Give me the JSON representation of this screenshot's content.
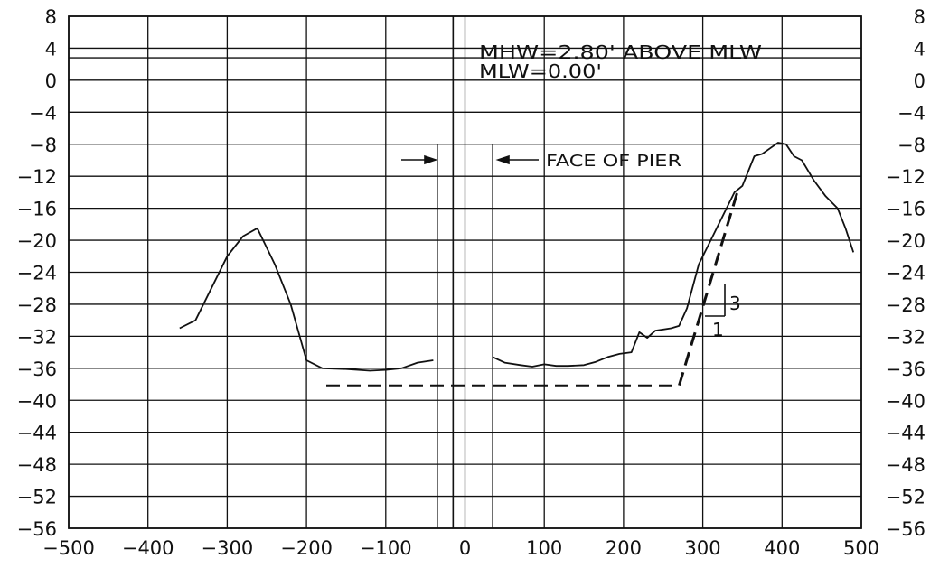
{
  "chart_data": {
    "type": "line",
    "xlim": [
      -500,
      500
    ],
    "ylim": [
      -56,
      8
    ],
    "x_ticks": [
      "-500",
      "-400",
      "-300",
      "-200",
      "-100",
      "0",
      "100",
      "200",
      "300",
      "400",
      "500"
    ],
    "y_ticks": [
      "8",
      "4",
      "0",
      "-4",
      "-8",
      "-12",
      "-16",
      "-20",
      "-24",
      "-28",
      "-32",
      "-36",
      "-40",
      "-44",
      "-48",
      "-52",
      "-56"
    ],
    "grid": true,
    "series": [
      {
        "style": "solid",
        "points": [
          [
            -360,
            -31
          ],
          [
            -340,
            -30
          ],
          [
            -320,
            -26
          ],
          [
            -300,
            -22
          ],
          [
            -280,
            -19.5
          ],
          [
            -262,
            -18.5
          ],
          [
            -240,
            -23
          ],
          [
            -220,
            -28
          ],
          [
            -200,
            -35
          ],
          [
            -180,
            -36
          ],
          [
            -150,
            -36.1
          ],
          [
            -120,
            -36.3
          ],
          [
            -100,
            -36.2
          ],
          [
            -80,
            -36
          ],
          [
            -60,
            -35.3
          ],
          [
            -40,
            -35
          ]
        ]
      },
      {
        "style": "solid",
        "points": [
          [
            35,
            -34.6
          ],
          [
            50,
            -35.3
          ],
          [
            70,
            -35.6
          ],
          [
            85,
            -35.8
          ],
          [
            100,
            -35.5
          ],
          [
            115,
            -35.7
          ],
          [
            130,
            -35.7
          ],
          [
            150,
            -35.6
          ],
          [
            165,
            -35.2
          ],
          [
            180,
            -34.6
          ],
          [
            195,
            -34.2
          ],
          [
            210,
            -34
          ],
          [
            220,
            -31.5
          ],
          [
            230,
            -32.2
          ],
          [
            240,
            -31.3
          ],
          [
            260,
            -31
          ],
          [
            270,
            -30.7
          ],
          [
            280,
            -28.5
          ],
          [
            295,
            -23
          ],
          [
            310,
            -20
          ],
          [
            330,
            -16
          ],
          [
            340,
            -14
          ],
          [
            350,
            -13.2
          ],
          [
            365,
            -9.5
          ],
          [
            375,
            -9.2
          ],
          [
            385,
            -8.5
          ],
          [
            395,
            -7.8
          ],
          [
            405,
            -8
          ],
          [
            415,
            -9.5
          ],
          [
            425,
            -10
          ],
          [
            440,
            -12.5
          ],
          [
            455,
            -14.5
          ],
          [
            470,
            -16
          ],
          [
            480,
            -18.5
          ],
          [
            490,
            -21.5
          ]
        ]
      },
      {
        "style": "dashed",
        "points": [
          [
            -175,
            -38.2
          ],
          [
            270,
            -38.2
          ],
          [
            345,
            -13.5
          ]
        ]
      }
    ],
    "annotations": {
      "mhw": "MHW=2.80' ABOVE MLW",
      "mlw": "MLW=0.00'",
      "face_of_pier": "FACE OF PIER",
      "slope_rise": "3",
      "slope_run": "1"
    },
    "reference_lines": {
      "mhw_elevation": 2.8,
      "mlw_elevation": 0.0,
      "pier_faces_x": [
        -35,
        -15,
        35
      ]
    }
  }
}
